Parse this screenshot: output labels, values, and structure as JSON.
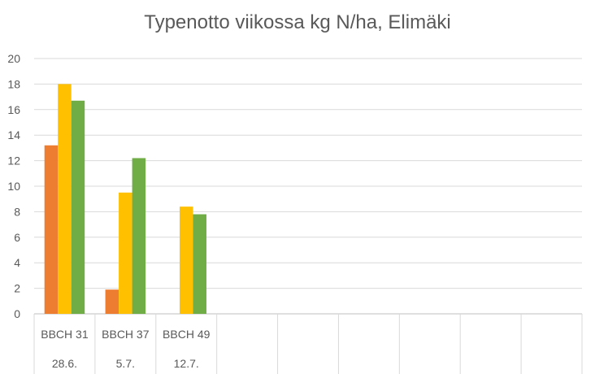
{
  "chart_data": {
    "type": "bar",
    "title": "Typenotto viikossa kg N/ha, Elimäki",
    "xlabel": "",
    "ylabel": "",
    "ylim": [
      0,
      20
    ],
    "yticks": [
      0,
      2,
      4,
      6,
      8,
      10,
      12,
      14,
      16,
      18,
      20
    ],
    "grid": true,
    "legend": "none",
    "categories": [
      {
        "stage": "BBCH 31",
        "date": "28.6."
      },
      {
        "stage": "BBCH 37",
        "date": "5.7."
      },
      {
        "stage": "BBCH 49",
        "date": "12.7."
      },
      {
        "stage": "",
        "date": ""
      },
      {
        "stage": "",
        "date": ""
      },
      {
        "stage": "",
        "date": ""
      },
      {
        "stage": "",
        "date": ""
      },
      {
        "stage": "",
        "date": ""
      },
      {
        "stage": "",
        "date": ""
      }
    ],
    "series": [
      {
        "color": "#ED7D31",
        "values": [
          13.2,
          1.9,
          null,
          null,
          null,
          null,
          null,
          null,
          null
        ]
      },
      {
        "color": "#FFC000",
        "values": [
          18.0,
          9.5,
          8.4,
          null,
          null,
          null,
          null,
          null,
          null
        ]
      },
      {
        "color": "#70AD47",
        "values": [
          16.7,
          12.2,
          7.8,
          null,
          null,
          null,
          null,
          null,
          null
        ]
      }
    ]
  }
}
